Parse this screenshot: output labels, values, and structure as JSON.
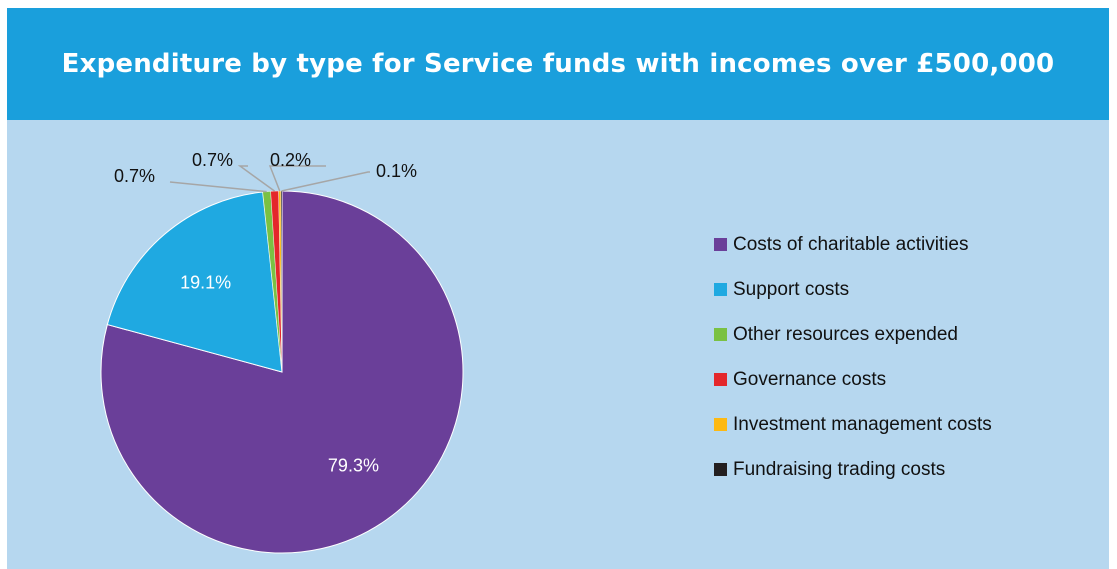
{
  "chart_data": {
    "type": "pie",
    "title": "Expenditure by type for Service funds with incomes over £500,000",
    "legend_position": "right",
    "slices": [
      {
        "label": "Costs of charitable activities",
        "value": 79.3,
        "display": "79.3%",
        "color": "#6a3f99"
      },
      {
        "label": "Support costs",
        "value": 19.1,
        "display": "19.1%",
        "color": "#1fa9e1"
      },
      {
        "label": "Other resources expended",
        "value": 0.7,
        "display": "0.7%",
        "color": "#7ac143"
      },
      {
        "label": "Governance costs",
        "value": 0.7,
        "display": "0.7%",
        "color": "#e4272b"
      },
      {
        "label": "Investment management costs",
        "value": 0.2,
        "display": "0.2%",
        "color": "#fdb913"
      },
      {
        "label": "Fundraising trading costs",
        "value": 0.1,
        "display": "0.1%",
        "color": "#231f20"
      }
    ]
  }
}
